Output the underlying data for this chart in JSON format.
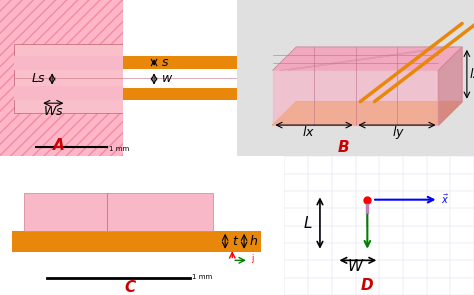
{
  "bg_color": "#f0f0f0",
  "pink_light": "#ffb6c8",
  "pink_medium": "#f48aa0",
  "pink_hatch": "#f4a0b0",
  "orange": "#e8870a",
  "dark_pink": "#d46080",
  "panel_A_label": "A",
  "panel_B_label": "B",
  "panel_C_label": "C",
  "panel_D_label": "D",
  "label_color": "#cc0000",
  "text_color": "#000000",
  "annotation_fontsize": 9,
  "panel_label_fontsize": 11
}
